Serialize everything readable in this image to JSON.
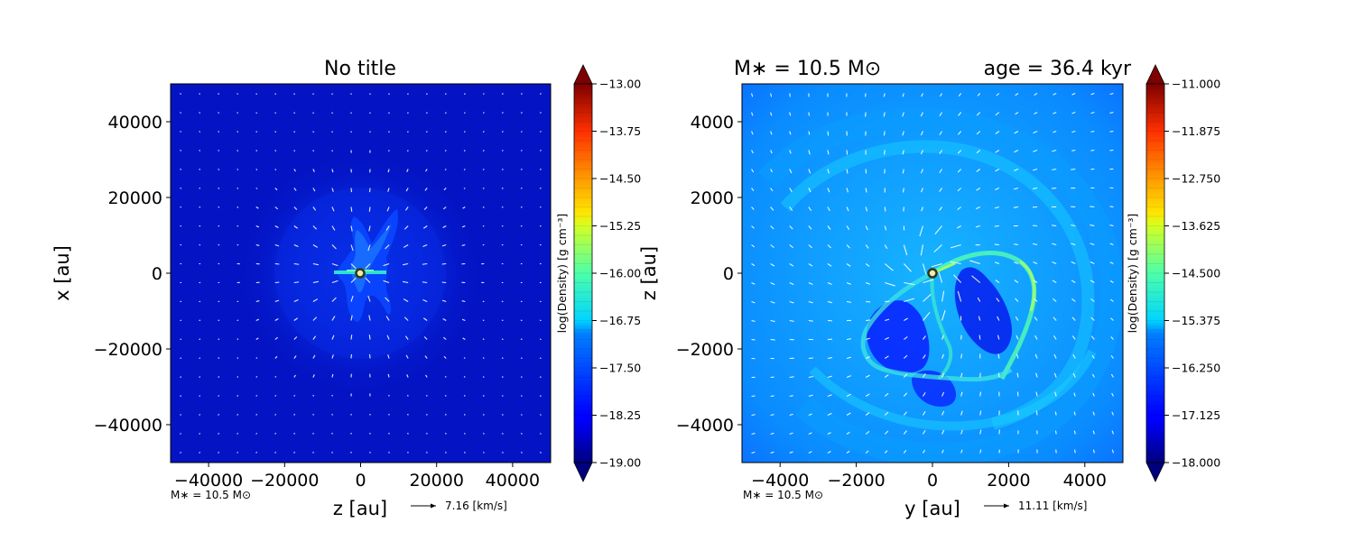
{
  "chart_data": [
    {
      "type": "heatmap",
      "title": "No title",
      "xlabel": "z [au]",
      "ylabel": "x [au]",
      "xlim": [
        -50000,
        50000
      ],
      "ylim": [
        -50000,
        50000
      ],
      "xticks": [
        -40000,
        -20000,
        0,
        20000,
        40000
      ],
      "yticks": [
        -40000,
        -20000,
        0,
        20000,
        40000
      ],
      "xtick_labels": [
        "−40000",
        "−20000",
        "0",
        "20000",
        "40000"
      ],
      "ytick_labels": [
        "−40000",
        "−20000",
        "0",
        "20000",
        "40000"
      ],
      "colorbar": {
        "label": "log(Density) [g cm$^{-3}$]",
        "label_text": "log(Density) [g cm⁻³]",
        "range": [
          -19.0,
          -13.0
        ],
        "ticks": [
          -13.0,
          -13.75,
          -14.5,
          -15.25,
          -16.0,
          -16.75,
          -17.5,
          -18.25,
          -19.0
        ],
        "tick_labels": [
          "−13.00",
          "−13.75",
          "−14.50",
          "−15.25",
          "−16.00",
          "−16.75",
          "−17.50",
          "−18.25",
          "−19.00"
        ],
        "colormap": "jet"
      },
      "star_position": [
        0,
        0
      ],
      "annotation": "M∗ = 10.5 M⊙",
      "vector_key": "7.16 [km/s]"
    },
    {
      "type": "heatmap",
      "title_left": "M∗ = 10.5 M⊙",
      "title_right": "age = 36.4 kyr",
      "xlabel": "y [au]",
      "ylabel": "z [au]",
      "xlim": [
        -5000,
        5000
      ],
      "ylim": [
        -5000,
        5000
      ],
      "xticks": [
        -4000,
        -2000,
        0,
        2000,
        4000
      ],
      "yticks": [
        -4000,
        -2000,
        0,
        2000,
        4000
      ],
      "xtick_labels": [
        "−4000",
        "−2000",
        "0",
        "2000",
        "4000"
      ],
      "ytick_labels": [
        "−4000",
        "−2000",
        "0",
        "2000",
        "4000"
      ],
      "colorbar": {
        "label": "log(Density) [g cm$^{-3}$]",
        "label_text": "log(Density) [g cm⁻³]",
        "range": [
          -18.0,
          -11.0
        ],
        "ticks": [
          -11.0,
          -11.875,
          -12.75,
          -13.625,
          -14.5,
          -15.375,
          -16.25,
          -17.125,
          -18.0
        ],
        "tick_labels": [
          "−11.000",
          "−11.875",
          "−12.750",
          "−13.625",
          "−14.500",
          "−15.375",
          "−16.250",
          "−17.125",
          "−18.000"
        ],
        "colormap": "jet"
      },
      "star_position": [
        0,
        0
      ],
      "annotation": "M∗ = 10.5 M⊙",
      "vector_key": "11.11 [km/s]"
    }
  ]
}
